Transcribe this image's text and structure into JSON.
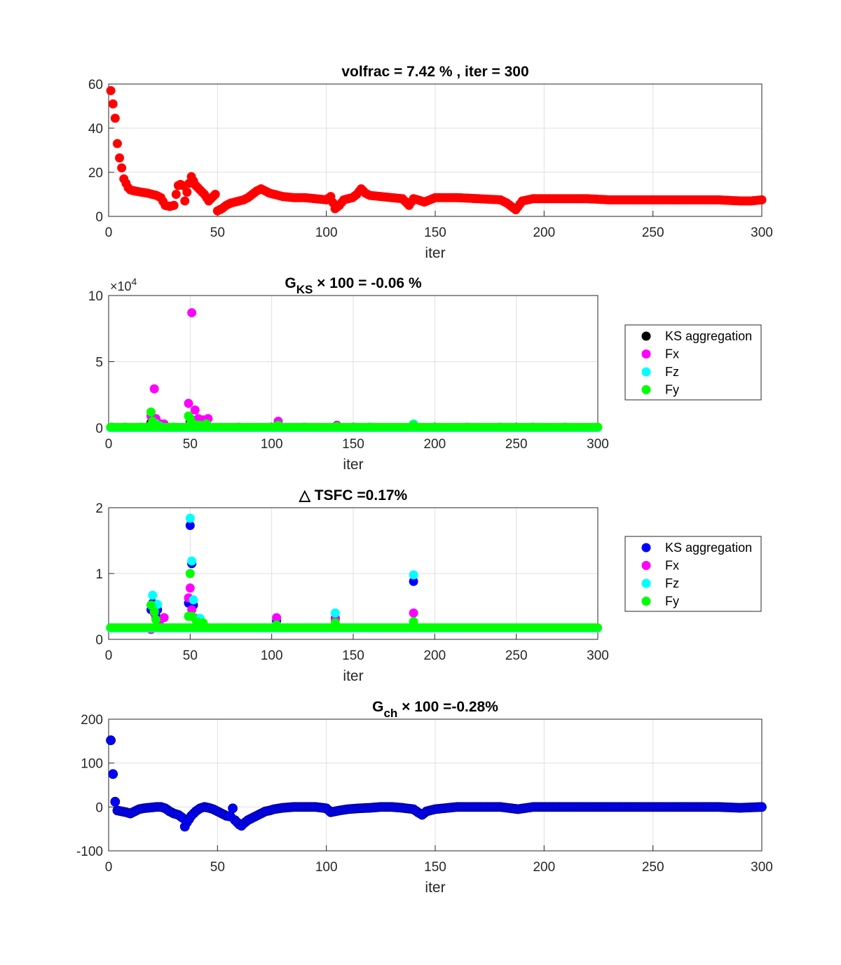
{
  "chart_data": [
    {
      "type": "scatter",
      "title": "volfrac = 7.42 % , iter = 300",
      "xlabel": "iter",
      "ylabel": "",
      "xlim": [
        0,
        300
      ],
      "ylim": [
        0,
        60
      ],
      "xticks": [
        "0",
        "50",
        "100",
        "150",
        "200",
        "250",
        "300"
      ],
      "yticks": [
        "0",
        "20",
        "40",
        "60"
      ],
      "grid": true,
      "legend": null,
      "series": [
        {
          "color": "#ff0000",
          "x": [
            1,
            2,
            3,
            4,
            5,
            6,
            7,
            8,
            9,
            10,
            12,
            15,
            18,
            20,
            22,
            24,
            26,
            28,
            30,
            31,
            32,
            33,
            34,
            35,
            36,
            37,
            38,
            39,
            40,
            42,
            44,
            46,
            48,
            49,
            50,
            52,
            54,
            56,
            58,
            60,
            62,
            64,
            66,
            68,
            70,
            72,
            74,
            76,
            78,
            80,
            85,
            90,
            95,
            100,
            102,
            104,
            106,
            108,
            110,
            112,
            114,
            116,
            118,
            120,
            125,
            130,
            135,
            138,
            140,
            142,
            145,
            150,
            160,
            170,
            180,
            183,
            185,
            187,
            190,
            195,
            200,
            210,
            220,
            230,
            240,
            250,
            260,
            270,
            280,
            290,
            295,
            300
          ],
          "y": [
            57,
            51,
            44.5,
            33,
            26.5,
            22,
            17,
            15,
            13,
            12,
            11.5,
            11,
            10.5,
            10,
            9.5,
            8.5,
            5,
            4.5,
            5,
            10,
            14,
            14.5,
            14,
            7,
            11,
            15,
            18,
            16,
            14,
            12,
            10,
            7,
            9,
            10,
            2.5,
            3.5,
            5,
            6,
            6.5,
            7,
            7.5,
            8.5,
            10,
            11.5,
            12.5,
            11.5,
            10.5,
            10,
            9.5,
            9,
            8.5,
            8.5,
            8,
            7.5,
            9,
            3.5,
            5,
            7.5,
            8,
            8.5,
            10,
            12.5,
            10.5,
            9.5,
            9,
            8.5,
            8,
            5,
            8,
            7.5,
            6.5,
            8.5,
            8.5,
            8,
            7.5,
            6,
            4.5,
            3,
            7,
            8,
            8,
            8,
            8,
            7.5,
            7.5,
            7.5,
            7.5,
            7.5,
            7.5,
            7,
            7,
            7.5
          ]
        }
      ]
    },
    {
      "type": "scatter",
      "title_main": "G",
      "title_sub": "KS",
      "title_rest": " × 100 = -0.06 %",
      "xlabel": "iter",
      "ylabel": "",
      "xlim": [
        0,
        300
      ],
      "ylim": [
        0,
        10
      ],
      "xticks": [
        "0",
        "50",
        "100",
        "150",
        "200",
        "250",
        "300"
      ],
      "yticks": [
        "0",
        "5",
        "10"
      ],
      "exponent_base": "×10",
      "exponent_power": "4",
      "grid": true,
      "legend": "top-right",
      "series": [
        {
          "name": "KS aggregation",
          "color": "#000000",
          "x": [
            26,
            27,
            28,
            29,
            30,
            50,
            51,
            52,
            53,
            104,
            140,
            187
          ],
          "y": [
            0.4,
            0.6,
            0.5,
            0.4,
            0.3,
            0.5,
            0.6,
            0.4,
            0.3,
            0.2,
            0.15,
            0.2
          ]
        },
        {
          "name": "Fx",
          "color": "#ff00ff",
          "x": [
            26,
            27,
            28,
            29,
            30,
            32,
            34,
            49,
            51,
            53,
            55,
            58,
            61,
            104,
            140,
            187
          ],
          "y": [
            0.9,
            0.6,
            2.95,
            0.7,
            0.4,
            0.3,
            0.3,
            1.85,
            8.7,
            1.35,
            0.7,
            0.6,
            0.7,
            0.5,
            0.2,
            0.3
          ]
        },
        {
          "name": "Fz",
          "color": "#00ffff",
          "x": [
            26,
            27,
            29,
            31,
            50,
            51,
            52,
            55,
            60,
            187
          ],
          "y": [
            0.2,
            0.3,
            0.3,
            0.15,
            0.2,
            0.3,
            0.2,
            0.2,
            0.3,
            0.3
          ]
        },
        {
          "name": "Fy",
          "color": "#00ff00",
          "x": [
            2,
            10,
            20,
            26,
            27,
            30,
            40,
            49,
            50,
            52,
            56,
            60,
            80,
            100,
            104,
            120,
            140,
            160,
            187,
            200,
            220,
            240,
            260,
            280,
            300
          ],
          "y": [
            0.05,
            0.05,
            0.05,
            1.2,
            0.5,
            0.2,
            0.05,
            0.9,
            0.7,
            0.3,
            0.2,
            0.3,
            0.05,
            0.05,
            0.2,
            0.05,
            0.1,
            0.05,
            0.2,
            0.05,
            0.05,
            0.05,
            0.05,
            0.05,
            0.05
          ]
        }
      ]
    },
    {
      "type": "scatter",
      "title": "△ TSFC =0.17%",
      "xlabel": "iter",
      "ylabel": "",
      "xlim": [
        0,
        300
      ],
      "ylim": [
        0,
        2
      ],
      "xticks": [
        "0",
        "50",
        "100",
        "150",
        "200",
        "250",
        "300"
      ],
      "yticks": [
        "0",
        "1",
        "2"
      ],
      "grid": true,
      "legend": "top-right",
      "series": [
        {
          "name": "KS aggregation",
          "color": "#0000ff",
          "x": [
            26,
            27,
            29,
            30,
            49,
            50,
            51,
            52,
            103,
            139,
            187
          ],
          "y": [
            0.45,
            0.55,
            0.35,
            0.45,
            0.55,
            1.73,
            1.15,
            0.52,
            0.28,
            0.32,
            0.88
          ]
        },
        {
          "name": "Fx",
          "color": "#ff00ff",
          "x": [
            26,
            28,
            31,
            34,
            49,
            50,
            51,
            53,
            103,
            139,
            187
          ],
          "y": [
            0.15,
            0.4,
            0.25,
            0.33,
            0.63,
            0.78,
            0.45,
            0.32,
            0.33,
            0.3,
            0.4
          ]
        },
        {
          "name": "Fz",
          "color": "#00ffff",
          "x": [
            27,
            30,
            50,
            51,
            52,
            56,
            139,
            187
          ],
          "y": [
            0.67,
            0.53,
            1.84,
            1.19,
            0.6,
            0.32,
            0.4,
            0.98
          ]
        },
        {
          "name": "Fy",
          "color": "#00ff00",
          "x": [
            26,
            28,
            29,
            49,
            50,
            51,
            54,
            58,
            103,
            139,
            187
          ],
          "y": [
            0.52,
            0.42,
            0.3,
            0.35,
            1.0,
            0.35,
            0.27,
            0.25,
            0.22,
            0.25,
            0.27
          ]
        }
      ]
    },
    {
      "type": "scatter",
      "title_main": "G",
      "title_sub": "ch",
      "title_rest": " × 100 =-0.28%",
      "xlabel": "iter",
      "ylabel": "",
      "xlim": [
        0,
        300
      ],
      "ylim": [
        -100,
        200
      ],
      "xticks": [
        "0",
        "50",
        "100",
        "150",
        "200",
        "250",
        "300"
      ],
      "yticks": [
        "-100",
        "0",
        "100",
        "200"
      ],
      "grid": true,
      "legend": null,
      "series": [
        {
          "color": "#0000ff",
          "x": [
            1,
            2,
            3,
            4,
            6,
            8,
            10,
            12,
            14,
            16,
            18,
            20,
            22,
            24,
            26,
            28,
            30,
            32,
            34,
            35,
            36,
            38,
            40,
            42,
            44,
            46,
            48,
            50,
            52,
            54,
            56,
            57,
            58,
            60,
            61,
            62,
            64,
            66,
            68,
            70,
            72,
            74,
            76,
            80,
            85,
            90,
            95,
            100,
            102,
            104,
            106,
            110,
            115,
            120,
            125,
            130,
            135,
            140,
            142,
            144,
            146,
            150,
            160,
            170,
            180,
            188,
            195,
            200,
            210,
            220,
            230,
            240,
            250,
            260,
            270,
            280,
            290,
            300
          ],
          "y": [
            152,
            75,
            12,
            -8,
            -10,
            -12,
            -15,
            -10,
            -5,
            -3,
            -2,
            -1,
            0,
            0,
            -3,
            -10,
            -15,
            -18,
            -25,
            -45,
            -35,
            -20,
            -10,
            -3,
            0,
            -2,
            -5,
            -10,
            -15,
            -20,
            -22,
            -3,
            -30,
            -40,
            -43,
            -38,
            -30,
            -25,
            -20,
            -15,
            -10,
            -8,
            -5,
            -2,
            0,
            0,
            0,
            -3,
            -12,
            -10,
            -8,
            -5,
            -3,
            -2,
            0,
            0,
            -2,
            -5,
            -12,
            -18,
            -10,
            -5,
            0,
            0,
            0,
            -5,
            0,
            0,
            0,
            0,
            0,
            0,
            0,
            0,
            0,
            0,
            -2,
            0
          ]
        }
      ]
    }
  ]
}
